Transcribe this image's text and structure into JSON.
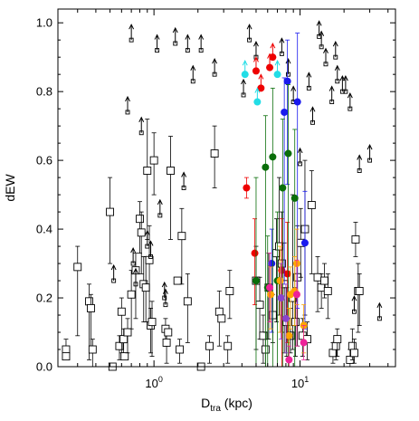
{
  "chart_data": {
    "type": "scatter",
    "xlabel": "D",
    "xlabel_sub": "tra",
    "xlabel_unit": " (kpc)",
    "ylabel": "dEW",
    "xscale": "log",
    "xlim": [
      0.22,
      45
    ],
    "ylim": [
      0.0,
      1.04
    ],
    "x_ticks": [
      {
        "value": 1,
        "base": "10",
        "exp": "0"
      },
      {
        "value": 10,
        "base": "10",
        "exp": "1"
      }
    ],
    "y_ticks": [
      {
        "value": 0.0,
        "label": "0.0"
      },
      {
        "value": 0.2,
        "label": "0.2"
      },
      {
        "value": 0.4,
        "label": "0.4"
      },
      {
        "value": 0.6,
        "label": "0.6"
      },
      {
        "value": 0.8,
        "label": "0.8"
      },
      {
        "value": 1.0,
        "label": "1.0"
      }
    ],
    "grid": false,
    "legend": "none",
    "colors": {
      "black": "#000000",
      "red": "#ee0000",
      "blue": "#1a1aee",
      "green": "#0a6e0a",
      "cyan": "#22dde6",
      "orange": "#ffa500",
      "magenta": "#ee2299",
      "purple": "#8844cc"
    },
    "series": [
      {
        "marker": "open-square",
        "color": "black",
        "points": [
          {
            "x": 0.25,
            "y": 0.05,
            "err": [
              0.02,
              0.03
            ]
          },
          {
            "x": 0.25,
            "y": 0.03
          },
          {
            "x": 0.3,
            "y": 0.29,
            "err": [
              0.2,
              0.06
            ]
          },
          {
            "x": 0.36,
            "y": 0.19,
            "err": [
              0.17,
              0.05
            ]
          },
          {
            "x": 0.37,
            "y": 0.17,
            "err": [
              0.12,
              0.04
            ]
          },
          {
            "x": 0.38,
            "y": 0.05,
            "err": [
              0.05,
              0.03
            ]
          },
          {
            "x": 0.5,
            "y": 0.45,
            "err": [
              0.15,
              0.1
            ]
          },
          {
            "x": 0.52,
            "y": 0.0
          },
          {
            "x": 0.58,
            "y": 0.06,
            "err": [
              0.04,
              0.03
            ]
          },
          {
            "x": 0.6,
            "y": 0.16,
            "err": [
              0.12,
              0.04
            ]
          },
          {
            "x": 0.62,
            "y": 0.08,
            "err": [
              0.05,
              0.03
            ]
          },
          {
            "x": 0.63,
            "y": 0.03
          },
          {
            "x": 0.66,
            "y": 0.1,
            "err": [
              0.06,
              0.04
            ]
          },
          {
            "x": 0.7,
            "y": 0.21,
            "err": [
              0.1,
              0.07
            ]
          },
          {
            "x": 0.75,
            "y": 0.28,
            "err": [
              0.14,
              0.05
            ]
          },
          {
            "x": 0.8,
            "y": 0.43,
            "err": [
              0.1,
              0.05
            ]
          },
          {
            "x": 0.82,
            "y": 0.39,
            "err": [
              0.12,
              0.06
            ]
          },
          {
            "x": 0.85,
            "y": 0.24,
            "err": [
              0.11,
              0.08
            ]
          },
          {
            "x": 0.88,
            "y": 0.23,
            "err": [
              0.1,
              0.09
            ]
          },
          {
            "x": 0.9,
            "y": 0.57,
            "err": [
              0.2,
              0.15
            ]
          },
          {
            "x": 0.93,
            "y": 0.31,
            "err": [
              0.2,
              0.1
            ]
          },
          {
            "x": 0.95,
            "y": 0.12,
            "err": [
              0.08,
              0.05
            ]
          },
          {
            "x": 0.97,
            "y": 0.13,
            "err": [
              0.1,
              0.06
            ]
          },
          {
            "x": 1.0,
            "y": 0.6,
            "err": [
              0.1,
              0.08
            ]
          },
          {
            "x": 1.2,
            "y": 0.11,
            "err": [
              0.05,
              0.03
            ]
          },
          {
            "x": 1.22,
            "y": 0.07,
            "err": [
              0.06,
              0.04
            ]
          },
          {
            "x": 1.25,
            "y": 0.1
          },
          {
            "x": 1.3,
            "y": 0.57,
            "err": [
              0.2,
              0.1
            ]
          },
          {
            "x": 1.45,
            "y": 0.25
          },
          {
            "x": 1.5,
            "y": 0.05,
            "err": [
              0.04,
              0.03
            ]
          },
          {
            "x": 1.55,
            "y": 0.38,
            "err": [
              0.14,
              0.08
            ]
          },
          {
            "x": 1.7,
            "y": 0.19,
            "err": [
              0.12,
              0.08
            ]
          },
          {
            "x": 2.1,
            "y": 0.0
          },
          {
            "x": 2.4,
            "y": 0.06,
            "err": [
              0.05,
              0.03
            ]
          },
          {
            "x": 2.6,
            "y": 0.62,
            "err": [
              0.1,
              0.08
            ]
          },
          {
            "x": 2.8,
            "y": 0.16,
            "err": [
              0.1,
              0.06
            ]
          },
          {
            "x": 2.9,
            "y": 0.14
          },
          {
            "x": 3.2,
            "y": 0.06,
            "err": [
              0.05,
              0.03
            ]
          },
          {
            "x": 3.3,
            "y": 0.22,
            "err": [
              0.08,
              0.06
            ]
          },
          {
            "x": 5.0,
            "y": 0.25,
            "err": [
              0.2,
              0.1
            ]
          },
          {
            "x": 5.3,
            "y": 0.18,
            "err": [
              0.1,
              0.08
            ]
          },
          {
            "x": 5.6,
            "y": 0.09,
            "err": [
              0.08,
              0.06
            ]
          },
          {
            "x": 5.8,
            "y": 0.05,
            "err": [
              0.05,
              0.05
            ]
          },
          {
            "x": 6.1,
            "y": 0.23,
            "err": [
              0.15,
              0.1
            ]
          },
          {
            "x": 6.5,
            "y": 0.15,
            "err": [
              0.08,
              0.06
            ]
          },
          {
            "x": 6.9,
            "y": 0.33,
            "err": [
              0.2,
              0.1
            ]
          },
          {
            "x": 7.2,
            "y": 0.35,
            "err": [
              0.2,
              0.2
            ]
          },
          {
            "x": 7.5,
            "y": 0.3,
            "err": [
              0.2,
              0.15
            ]
          },
          {
            "x": 7.8,
            "y": 0.24,
            "err": [
              0.2,
              0.12
            ]
          },
          {
            "x": 8.1,
            "y": 0.13,
            "err": [
              0.1,
              0.1
            ]
          },
          {
            "x": 8.6,
            "y": 0.09,
            "err": [
              0.05,
              0.08
            ]
          },
          {
            "x": 8.9,
            "y": 0.2,
            "err": [
              0.15,
              0.3
            ]
          },
          {
            "x": 9.3,
            "y": 0.13,
            "err": [
              0.1,
              0.1
            ]
          },
          {
            "x": 9.6,
            "y": 0.26,
            "err": [
              0.2,
              0.15
            ]
          },
          {
            "x": 10.1,
            "y": 0.36,
            "err": [
              0.1,
              0.1
            ]
          },
          {
            "x": 10.4,
            "y": 0.09,
            "err": [
              0.06,
              0.05
            ]
          },
          {
            "x": 10.8,
            "y": 0.4,
            "err": [
              0.25,
              0.2
            ]
          },
          {
            "x": 11.2,
            "y": 0.08,
            "err": [
              0.06,
              0.05
            ]
          },
          {
            "x": 12.0,
            "y": 0.47,
            "err": [
              0.2,
              0.1
            ]
          },
          {
            "x": 13.2,
            "y": 0.26,
            "err": [
              0.1,
              0.06
            ]
          },
          {
            "x": 14.0,
            "y": 0.23,
            "err": [
              0.06,
              0.04
            ]
          },
          {
            "x": 14.7,
            "y": 0.25,
            "err": [
              0.05,
              0.05
            ]
          },
          {
            "x": 15.5,
            "y": 0.22,
            "err": [
              0.08,
              0.05
            ]
          },
          {
            "x": 16.8,
            "y": 0.04,
            "err": [
              0.03,
              0.03
            ]
          },
          {
            "x": 17.6,
            "y": 0.06,
            "err": [
              0.04,
              0.03
            ]
          },
          {
            "x": 18.0,
            "y": 0.08,
            "err": [
              0.05,
              0.03
            ]
          },
          {
            "x": 22.0,
            "y": 0.02,
            "err": [
              0.02,
              0.03
            ]
          },
          {
            "x": 22.8,
            "y": 0.06,
            "err": [
              0.04,
              0.05
            ]
          },
          {
            "x": 23.5,
            "y": 0.04,
            "err": [
              0.03,
              0.04
            ]
          },
          {
            "x": 24.0,
            "y": 0.37,
            "err": [
              0.05,
              0.05
            ]
          },
          {
            "x": 25.0,
            "y": 0.22,
            "err": [
              0.12,
              0.08
            ]
          },
          {
            "x": 25.5,
            "y": 0.22,
            "err": [
              0.1,
              0.05
            ]
          }
        ]
      },
      {
        "marker": "open-square-lower-limit",
        "color": "black",
        "points": [
          {
            "x": 0.53,
            "y": 0.25
          },
          {
            "x": 0.66,
            "y": 0.74
          },
          {
            "x": 0.7,
            "y": 0.95
          },
          {
            "x": 0.72,
            "y": 0.3
          },
          {
            "x": 0.75,
            "y": 0.24
          },
          {
            "x": 0.82,
            "y": 0.68
          },
          {
            "x": 0.9,
            "y": 0.35
          },
          {
            "x": 0.95,
            "y": 0.32
          },
          {
            "x": 1.05,
            "y": 0.92
          },
          {
            "x": 1.1,
            "y": 0.44
          },
          {
            "x": 1.18,
            "y": 0.2
          },
          {
            "x": 1.2,
            "y": 0.18
          },
          {
            "x": 1.4,
            "y": 0.94
          },
          {
            "x": 1.6,
            "y": 0.52
          },
          {
            "x": 1.7,
            "y": 0.92
          },
          {
            "x": 1.85,
            "y": 0.83
          },
          {
            "x": 2.1,
            "y": 0.92
          },
          {
            "x": 2.6,
            "y": 0.85
          },
          {
            "x": 4.1,
            "y": 0.79
          },
          {
            "x": 4.5,
            "y": 0.95
          },
          {
            "x": 5.0,
            "y": 0.9
          },
          {
            "x": 7.5,
            "y": 0.91
          },
          {
            "x": 8.3,
            "y": 0.85
          },
          {
            "x": 9.0,
            "y": 0.77
          },
          {
            "x": 10.0,
            "y": 0.59
          },
          {
            "x": 11.5,
            "y": 0.81
          },
          {
            "x": 12.2,
            "y": 0.71
          },
          {
            "x": 13.5,
            "y": 0.96
          },
          {
            "x": 14.0,
            "y": 0.93
          },
          {
            "x": 15.0,
            "y": 0.88
          },
          {
            "x": 16.5,
            "y": 0.77
          },
          {
            "x": 17.5,
            "y": 0.9
          },
          {
            "x": 18.0,
            "y": 0.83
          },
          {
            "x": 19.5,
            "y": 0.8
          },
          {
            "x": 20.5,
            "y": 0.8
          },
          {
            "x": 22.0,
            "y": 0.75
          },
          {
            "x": 23.5,
            "y": 0.16
          },
          {
            "x": 25.5,
            "y": 0.57
          },
          {
            "x": 30.0,
            "y": 0.6
          },
          {
            "x": 35.0,
            "y": 0.14
          }
        ]
      },
      {
        "marker": "filled-circle",
        "color": "red",
        "points": [
          {
            "x": 4.3,
            "y": 0.52,
            "err": [
              0.03,
              0.03
            ]
          },
          {
            "x": 4.9,
            "y": 0.33,
            "err": [
              0.15,
              0.1
            ]
          },
          {
            "x": 7.5,
            "y": 0.28,
            "err": [
              0.28,
              0.15
            ]
          },
          {
            "x": 8.2,
            "y": 0.27,
            "err": [
              0.2,
              0.15
            ]
          }
        ]
      },
      {
        "marker": "filled-circle-lower-limit",
        "color": "red",
        "points": [
          {
            "x": 5.0,
            "y": 0.86
          },
          {
            "x": 5.4,
            "y": 0.81
          },
          {
            "x": 6.2,
            "y": 0.87
          },
          {
            "x": 6.5,
            "y": 0.9
          }
        ]
      },
      {
        "marker": "filled-circle",
        "color": "blue",
        "points": [
          {
            "x": 6.4,
            "y": 0.3,
            "err": [
              0.2,
              0.1
            ]
          },
          {
            "x": 7.8,
            "y": 0.74,
            "err": [
              0.5,
              0.1
            ]
          },
          {
            "x": 8.2,
            "y": 0.83,
            "err": [
              0.3,
              0.12
            ]
          },
          {
            "x": 9.6,
            "y": 0.77,
            "err": [
              0.6,
              0.2
            ]
          },
          {
            "x": 10.8,
            "y": 0.36,
            "err": [
              0.25,
              0.15
            ]
          }
        ]
      },
      {
        "marker": "filled-circle",
        "color": "green",
        "points": [
          {
            "x": 5.0,
            "y": 0.25,
            "err": [
              0.25,
              0.3
            ]
          },
          {
            "x": 5.8,
            "y": 0.58,
            "err": [
              0.6,
              0.15
            ]
          },
          {
            "x": 6.0,
            "y": 0.23,
            "err": [
              0.23,
              0.15
            ]
          },
          {
            "x": 6.5,
            "y": 0.61,
            "err": [
              0.61,
              0.2
            ]
          },
          {
            "x": 7.0,
            "y": 0.25,
            "err": [
              0.25,
              0.2
            ]
          },
          {
            "x": 7.6,
            "y": 0.52,
            "err": [
              0.52,
              0.2
            ]
          },
          {
            "x": 8.3,
            "y": 0.62,
            "err": [
              0.62,
              0.2
            ]
          },
          {
            "x": 9.2,
            "y": 0.49,
            "err": [
              0.49,
              0.2
            ]
          }
        ]
      },
      {
        "marker": "filled-circle-lower-limit",
        "color": "cyan",
        "points": [
          {
            "x": 4.2,
            "y": 0.85
          },
          {
            "x": 5.1,
            "y": 0.77
          },
          {
            "x": 7.0,
            "y": 0.85
          }
        ]
      },
      {
        "marker": "filled-circle",
        "color": "orange",
        "points": [
          {
            "x": 6.3,
            "y": 0.21,
            "err": [
              0.1,
              0.08
            ]
          },
          {
            "x": 7.3,
            "y": 0.25,
            "err": [
              0.15,
              0.1
            ]
          },
          {
            "x": 8.4,
            "y": 0.09,
            "err": [
              0.09,
              0.08
            ]
          },
          {
            "x": 8.6,
            "y": 0.21,
            "err": [
              0.1,
              0.08
            ]
          },
          {
            "x": 9.2,
            "y": 0.22,
            "err": [
              0.1,
              0.1
            ]
          },
          {
            "x": 9.5,
            "y": 0.3,
            "err": [
              0.12,
              0.1
            ]
          },
          {
            "x": 10.6,
            "y": 0.12,
            "err": [
              0.08,
              0.06
            ]
          }
        ]
      },
      {
        "marker": "filled-circle",
        "color": "magenta",
        "points": [
          {
            "x": 6.2,
            "y": 0.23,
            "err": [
              0.1,
              0.1
            ]
          },
          {
            "x": 8.4,
            "y": 0.02,
            "err": [
              0.02,
              0.04
            ]
          },
          {
            "x": 9.5,
            "y": 0.21,
            "err": [
              0.15,
              0.1
            ]
          },
          {
            "x": 10.6,
            "y": 0.07,
            "err": [
              0.05,
              0.05
            ]
          }
        ]
      },
      {
        "marker": "filled-circle",
        "color": "purple",
        "points": [
          {
            "x": 7.4,
            "y": 0.2,
            "err": [
              0.12,
              0.1
            ]
          },
          {
            "x": 8.0,
            "y": 0.14,
            "err": [
              0.1,
              0.1
            ]
          }
        ]
      }
    ]
  }
}
